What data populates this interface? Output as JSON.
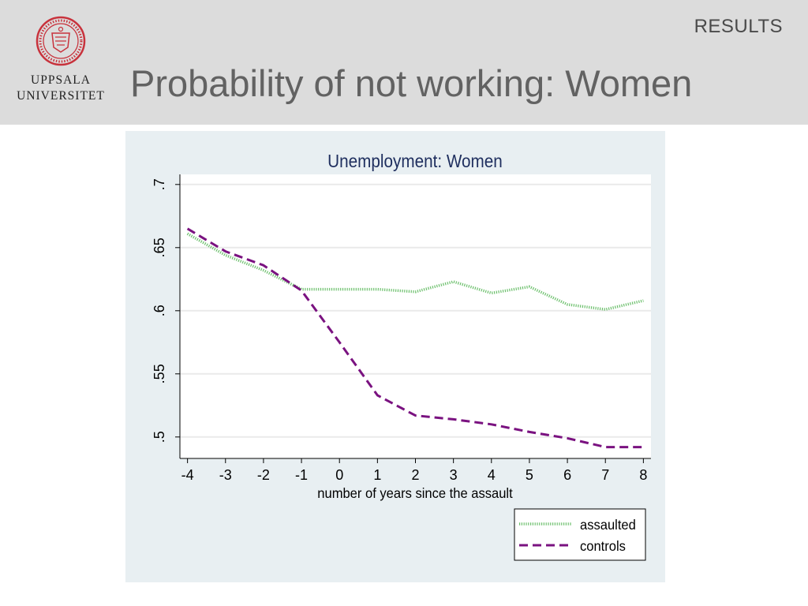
{
  "header": {
    "section_label": "RESULTS",
    "title": "Probability of not working: Women"
  },
  "logo": {
    "line1": "UPPSALA",
    "line2": "UNIVERSITET",
    "color": "#c8323c"
  },
  "chart_data": {
    "type": "line",
    "title": "Unemployment: Women",
    "xlabel": "number of years since the assault",
    "ylabel": "",
    "x": [
      -4,
      -3,
      -2,
      -1,
      0,
      1,
      2,
      3,
      4,
      5,
      6,
      7,
      8
    ],
    "x_tick_labels": [
      "-4",
      "-3",
      "-2",
      "-1",
      "0",
      "1",
      "2",
      "3",
      "4",
      "5",
      "6",
      "7",
      "8"
    ],
    "y_ticks": [
      0.5,
      0.55,
      0.6,
      0.65,
      0.7
    ],
    "y_tick_labels": [
      ".5",
      ".55",
      ".6",
      ".65",
      ".7"
    ],
    "xlim": [
      -4.2,
      8.2
    ],
    "ylim": [
      0.483,
      0.708
    ],
    "grid": true,
    "legend_position": "bottom-right",
    "series": [
      {
        "name": "assaulted",
        "color": "#6bbf6b",
        "style": "dotted",
        "values": [
          0.661,
          0.644,
          0.632,
          0.617,
          0.617,
          0.617,
          0.615,
          0.623,
          0.614,
          0.619,
          0.605,
          0.601,
          0.608
        ]
      },
      {
        "name": "controls",
        "color": "#7a1280",
        "style": "dashed",
        "values": [
          0.665,
          0.647,
          0.636,
          0.616,
          0.575,
          0.533,
          0.517,
          0.514,
          0.51,
          0.504,
          0.499,
          0.492,
          0.492
        ]
      }
    ]
  }
}
